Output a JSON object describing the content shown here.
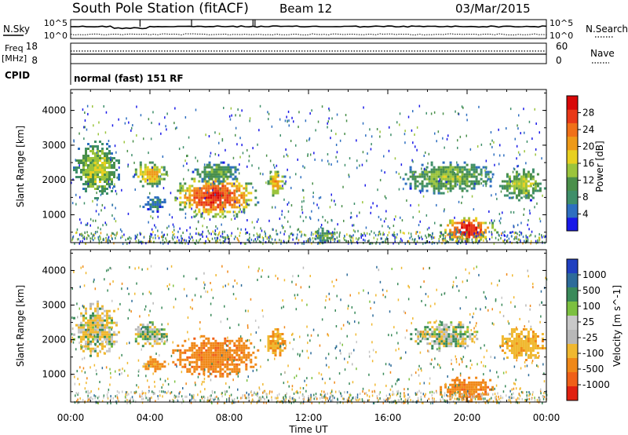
{
  "header": {
    "title": "South Pole Station (fitACF)",
    "beam": "Beam 12",
    "date": "03/Mar/2015"
  },
  "noise_panel": {
    "left_label": "N.Sky",
    "right_label": "N.Search",
    "left_ticks": [
      "10^5",
      "10^0"
    ],
    "right_ticks": [
      "10^5",
      "10^0"
    ]
  },
  "freq_panel": {
    "label_line1": "Freq",
    "label_line2": "[MHz]",
    "left_ticks": [
      "18",
      "8"
    ],
    "right_label": "Nave",
    "right_ticks": [
      "60",
      "0"
    ]
  },
  "cpid_panel": {
    "label": "CPID",
    "text": "normal (fast) 151 RF"
  },
  "colors": {
    "power_scale": [
      "#1818e8",
      "#2e6fc0",
      "#3f8f6a",
      "#4a8f4a",
      "#9bc43c",
      "#e8d020",
      "#ee9a18",
      "#f07018",
      "#e83818",
      "#d80808"
    ],
    "velocity_scale": [
      "#2040c0",
      "#2d6b9a",
      "#3a8a5a",
      "#7cc040",
      "#c8c8c8",
      "#b8b8b8",
      "#f0b830",
      "#f08818",
      "#f06018",
      "#e02010"
    ]
  },
  "chart_data": [
    {
      "type": "heatmap",
      "name": "power",
      "ylabel": "Slant Range [km]",
      "y_ticks": [
        "1000",
        "2000",
        "3000",
        "4000"
      ],
      "ylim": [
        200,
        4600
      ],
      "colorbar_label": "Power [dB]",
      "colorbar_ticks": [
        "4",
        "8",
        "12",
        "16",
        "20",
        "24",
        "28"
      ],
      "colorbar_range": [
        0,
        32
      ],
      "echo_regions": [
        {
          "t0": 0.0,
          "t1": 2.5,
          "r0": 1500,
          "r1": 3200,
          "v": 16
        },
        {
          "t0": 3.0,
          "t1": 5.0,
          "r0": 1800,
          "r1": 2600,
          "v": 20
        },
        {
          "t0": 3.5,
          "t1": 4.8,
          "r0": 1100,
          "r1": 1600,
          "v": 8
        },
        {
          "t0": 5.0,
          "t1": 9.5,
          "r0": 900,
          "r1": 2200,
          "v": 28
        },
        {
          "t0": 6.0,
          "t1": 8.5,
          "r0": 1900,
          "r1": 2600,
          "v": 12
        },
        {
          "t0": 9.8,
          "t1": 10.8,
          "r0": 1500,
          "r1": 2400,
          "v": 20
        },
        {
          "t0": 12.3,
          "t1": 13.3,
          "r0": 200,
          "r1": 700,
          "v": 12
        },
        {
          "t0": 16.5,
          "t1": 21.5,
          "r0": 1600,
          "r1": 2600,
          "v": 14
        },
        {
          "t0": 18.5,
          "t1": 21.5,
          "r0": 200,
          "r1": 1000,
          "v": 30
        },
        {
          "t0": 21.5,
          "t1": 24.0,
          "r0": 1400,
          "r1": 2400,
          "v": 16
        }
      ]
    },
    {
      "type": "heatmap",
      "name": "velocity",
      "xlabel": "Time UT",
      "x_ticks": [
        "00:00",
        "04:00",
        "08:00",
        "12:00",
        "16:00",
        "20:00",
        "00:00"
      ],
      "xlim": [
        0,
        24
      ],
      "ylabel": "Slant Range [km]",
      "y_ticks": [
        "1000",
        "2000",
        "3000",
        "4000"
      ],
      "ylim": [
        200,
        4600
      ],
      "colorbar_label": "Velocity [m s^-1]",
      "colorbar_ticks": [
        "1000",
        "500",
        "100",
        "25",
        "-25",
        "-100",
        "-500",
        "-1000"
      ],
      "echo_regions": [
        {
          "t0": 0.0,
          "t1": 2.5,
          "r0": 1500,
          "r1": 3200,
          "v": -50
        },
        {
          "t0": 3.0,
          "t1": 5.0,
          "r0": 1800,
          "r1": 2600,
          "v": 0
        },
        {
          "t0": 3.5,
          "t1": 4.8,
          "r0": 1100,
          "r1": 1600,
          "v": -400
        },
        {
          "t0": 5.0,
          "t1": 9.5,
          "r0": 900,
          "r1": 2200,
          "v": -500
        },
        {
          "t0": 9.8,
          "t1": 10.8,
          "r0": 1500,
          "r1": 2400,
          "v": -300
        },
        {
          "t0": 17.0,
          "t1": 20.5,
          "r0": 1700,
          "r1": 2600,
          "v": 0
        },
        {
          "t0": 18.5,
          "t1": 21.5,
          "r0": 200,
          "r1": 1000,
          "v": -500
        },
        {
          "t0": 21.5,
          "t1": 24.0,
          "r0": 1400,
          "r1": 2400,
          "v": -200
        }
      ]
    }
  ]
}
